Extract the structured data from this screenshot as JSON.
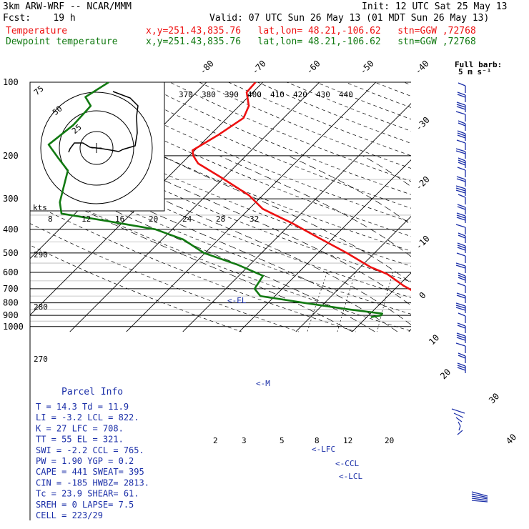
{
  "header": {
    "model": "3km ARW-WRF -- NCAR/MMM",
    "fcst": "Fcst:    19 h",
    "init": "Init: 12 UTC Sat 25 May 13",
    "valid": "Valid: 07 UTC Sun 26 May 13 (01 MDT Sun 26 May 13)",
    "temp_label": "Temperature",
    "dew_label": "Dewpoint temperature",
    "loc_info": "x,y=251.43,835.76   lat,lon= 48.21,-106.62   stn=GGW ,72768"
  },
  "colors": {
    "temperature": "#ee1111",
    "dewpoint": "#127a12",
    "text_blue": "#1a2ea8"
  },
  "barb_title": [
    "Full barb:",
    "5 m s⁻¹"
  ],
  "parcel_info": {
    "title": "Parcel Info",
    "rows": [
      "T  =   14.3  Td =  11.9",
      "LI =   -3.2  LCL =  822.",
      "K  =     27  LFC =  708.",
      "TT =     55  EL  =  321.",
      "SWI =  -2.2  CCL =  765.",
      "PW =   1.90  YGP =   0.2",
      "CAPE =  441  SWEAT=  395",
      "CIN =  -185  HWBZ= 2813.",
      "Tc =   23.9  SHEAR=  61.",
      "SREH =    0  LAPSE=  7.5",
      "CELL = 223/29"
    ]
  },
  "level_labels": {
    "el": "<-EL",
    "m": "<-M",
    "lfc": "<-LFC",
    "ccl": "<-CCL",
    "lcl": "<-LCL"
  },
  "hodograph": {
    "ring_labels": [
      "75",
      "50",
      "25"
    ],
    "unit": "kts"
  },
  "chart_data": {
    "type": "skew-T log-P sounding",
    "pressure_axis_hPa": [
      100,
      200,
      300,
      400,
      500,
      600,
      700,
      800,
      900,
      1000
    ],
    "isotherm_labels_C": [
      "-80",
      "-70",
      "-60",
      "-50",
      "-40",
      "-30",
      "-20",
      "-10",
      "0",
      "10",
      "20",
      "30",
      "40"
    ],
    "theta_labels_K": [
      "370",
      "380",
      "390",
      "400",
      "410",
      "420",
      "430",
      "440"
    ],
    "theta_labels_lower_K": [
      "290",
      "280",
      "270"
    ],
    "mixing_ratio_labels_upper": [
      "8",
      "12",
      "16",
      "20",
      "24",
      "28",
      "32"
    ],
    "mixing_ratio_labels_lower": [
      "2",
      "3",
      "5",
      "8",
      "12",
      "20"
    ],
    "temperature_profile": [
      {
        "p": 100,
        "t": -61.3
      },
      {
        "p": 110,
        "t": -61.1
      },
      {
        "p": 125,
        "t": -58.3
      },
      {
        "p": 140,
        "t": -57.1
      },
      {
        "p": 165,
        "t": -58.6
      },
      {
        "p": 190,
        "t": -60.4
      },
      {
        "p": 200,
        "t": -59.3
      },
      {
        "p": 215,
        "t": -57.1
      },
      {
        "p": 245,
        "t": -50.6
      },
      {
        "p": 290,
        "t": -42.5
      },
      {
        "p": 330,
        "t": -37.6
      },
      {
        "p": 380,
        "t": -29.5
      },
      {
        "p": 430,
        "t": -23.0
      },
      {
        "p": 500,
        "t": -14.9
      },
      {
        "p": 570,
        "t": -8.3
      },
      {
        "p": 610,
        "t": -4.0
      },
      {
        "p": 680,
        "t": 0.9
      },
      {
        "p": 730,
        "t": 4.6
      },
      {
        "p": 800,
        "t": 10.1
      },
      {
        "p": 850,
        "t": 13.7
      },
      {
        "p": 872,
        "t": 14.4
      },
      {
        "p": 905,
        "t": 12.7
      },
      {
        "p": 930,
        "t": 10.8
      }
    ],
    "dewpoint_profile": [
      {
        "p": 100,
        "t": -87.3
      },
      {
        "p": 115,
        "t": -88.8
      },
      {
        "p": 125,
        "t": -86.3
      },
      {
        "p": 150,
        "t": -86.0
      },
      {
        "p": 180,
        "t": -86.9
      },
      {
        "p": 205,
        "t": -82.7
      },
      {
        "p": 230,
        "t": -78.9
      },
      {
        "p": 275,
        "t": -76.4
      },
      {
        "p": 310,
        "t": -74.7
      },
      {
        "p": 345,
        "t": -72.4
      },
      {
        "p": 370,
        "t": -63.0
      },
      {
        "p": 400,
        "t": -53.0
      },
      {
        "p": 440,
        "t": -46.3
      },
      {
        "p": 500,
        "t": -40.2
      },
      {
        "p": 560,
        "t": -32.0
      },
      {
        "p": 620,
        "t": -25.7
      },
      {
        "p": 700,
        "t": -24.9
      },
      {
        "p": 750,
        "t": -22.6
      },
      {
        "p": 800,
        "t": -13.6
      },
      {
        "p": 850,
        "t": -4.7
      },
      {
        "p": 885,
        "t": 2.1
      },
      {
        "p": 900,
        "t": 2.2
      },
      {
        "p": 915,
        "t": 0.7
      }
    ]
  }
}
